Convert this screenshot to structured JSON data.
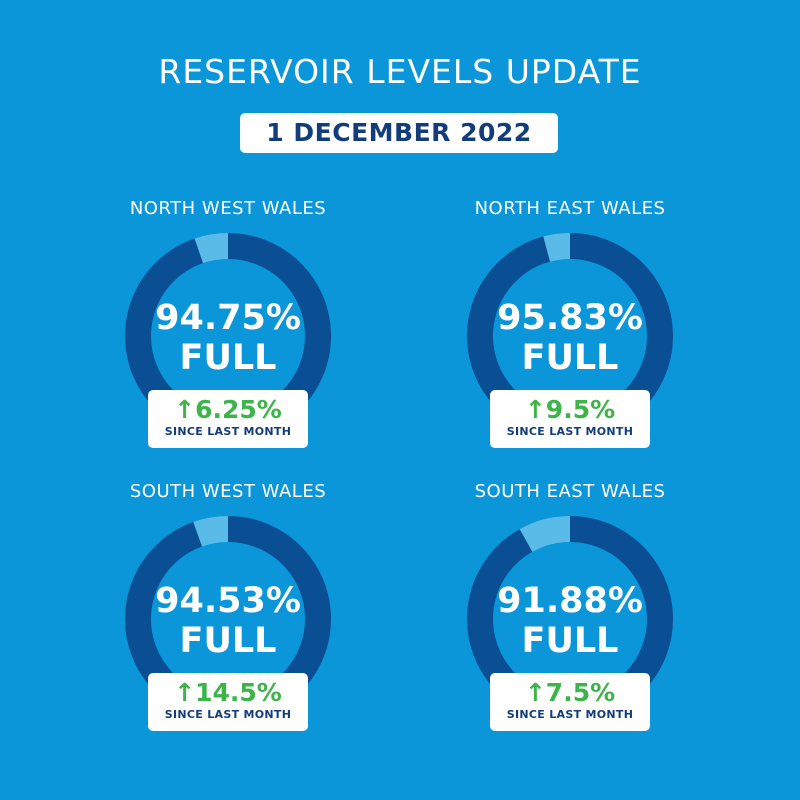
{
  "title": "RESERVOIR LEVELS UPDATE",
  "date": "1 DECEMBER 2022",
  "colors": {
    "background": "#0a96d8",
    "filled": "#0a4f94",
    "empty": "#5bbbe8",
    "increase": "#3cb44a",
    "navy": "#123d7a"
  },
  "chart_data": {
    "type": "pie",
    "title": "RESERVOIR LEVELS UPDATE",
    "unit": "% full",
    "regions": [
      {
        "name": "NORTH WEST WALES",
        "value": 94.75,
        "value_label": "94.75%",
        "full_label": "FULL",
        "change_label": "6.25%",
        "change_icon": "arrow-up-icon",
        "since": "SINCE LAST MONTH"
      },
      {
        "name": "NORTH EAST WALES",
        "value": 95.83,
        "value_label": "95.83%",
        "full_label": "FULL",
        "change_label": "9.5%",
        "change_icon": "arrow-up-icon",
        "since": "SINCE LAST MONTH"
      },
      {
        "name": "SOUTH WEST WALES",
        "value": 94.53,
        "value_label": "94.53%",
        "full_label": "FULL",
        "change_label": "14.5%",
        "change_icon": "arrow-up-icon",
        "since": "SINCE LAST MONTH"
      },
      {
        "name": "SOUTH EAST WALES",
        "value": 91.88,
        "value_label": "91.88%",
        "full_label": "FULL",
        "change_label": "7.5%",
        "change_icon": "arrow-up-icon",
        "since": "SINCE LAST MONTH"
      }
    ]
  }
}
